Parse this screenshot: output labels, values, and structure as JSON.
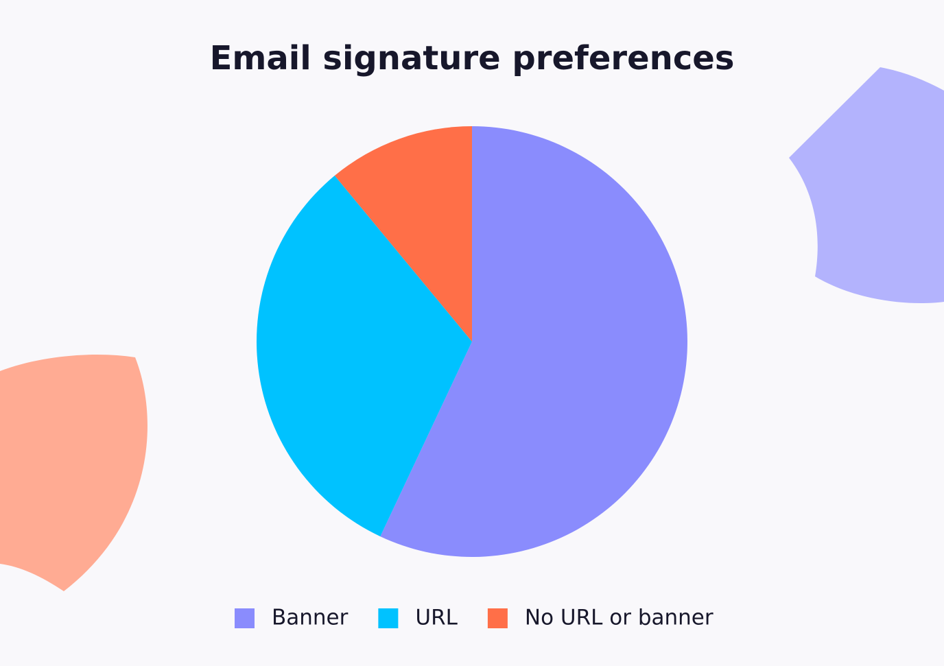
{
  "chart_data": {
    "type": "pie",
    "title": "Email signature preferences",
    "categories": [
      "Banner",
      "URL",
      "No URL or banner"
    ],
    "values": [
      57,
      32,
      11
    ],
    "colors": [
      "#8a8cfd",
      "#00c2ff",
      "#ff6f48"
    ],
    "legend": "bottom"
  }
}
